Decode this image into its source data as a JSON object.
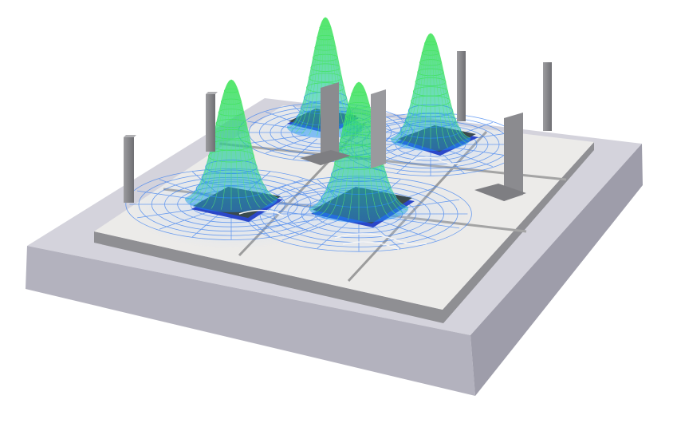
{
  "scene": {
    "description_tags": [
      "chip-array",
      "thermal-field",
      "wireframe-peaks"
    ],
    "colors": {
      "background": "#ffffff",
      "base_top": "#d4d3dc",
      "base_side": "#b9b8c3",
      "base_front": "#a8a7b3",
      "board_top": "#ececea",
      "board_side": "#9a9a9a",
      "rail": "#a9a9a9",
      "chip_top": "#3a4a4e",
      "chip_edge": "#2b47c9",
      "field_grid": "#3b7ff0",
      "peak_low": "#1e90ff",
      "peak_high": "#2fe04a",
      "post": "#8d8d8f"
    },
    "chips": [
      {
        "label": "chip-back-left"
      },
      {
        "label": "chip-back-right"
      },
      {
        "label": "chip-front-left"
      },
      {
        "label": "chip-front-right"
      }
    ]
  }
}
